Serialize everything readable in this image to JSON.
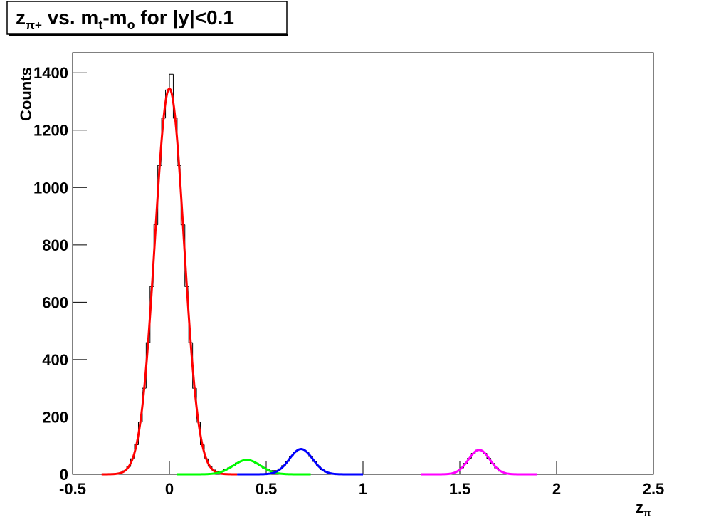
{
  "chart_data": {
    "type": "histogram",
    "title_parts": [
      "z",
      "π+",
      " vs. m",
      "t",
      "-m",
      "o",
      " for |y|<0.1"
    ],
    "xlabel_parts": [
      "z",
      "π"
    ],
    "ylabel": "Counts",
    "xlim": [
      -0.5,
      2.5
    ],
    "ylim": [
      0,
      1470
    ],
    "xticks": [
      -0.5,
      0,
      0.5,
      1,
      1.5,
      2,
      2.5
    ],
    "yticks": [
      0,
      200,
      400,
      600,
      800,
      1000,
      1200,
      1400
    ],
    "color": "#000000",
    "bins": [
      -0.3,
      -0.28,
      -0.26,
      -0.24,
      -0.22,
      -0.2,
      -0.18,
      -0.16,
      -0.14,
      -0.12,
      -0.1,
      -0.08,
      -0.06,
      -0.04,
      -0.02,
      0,
      0.02,
      0.04,
      0.06,
      0.08,
      0.1,
      0.12,
      0.14,
      0.16,
      0.18,
      0.2,
      0.22,
      0.24,
      0.26,
      0.28,
      0.3,
      0.32,
      0.34,
      0.36,
      0.38,
      0.4,
      0.42,
      0.44,
      0.46,
      0.48,
      0.5,
      0.52,
      0.54,
      0.56,
      0.58,
      0.6,
      0.62,
      0.64,
      0.66,
      0.68,
      0.7,
      0.72,
      0.74,
      0.76,
      0.78,
      0.8,
      0.82,
      0.84,
      0.86,
      0.88,
      0.9,
      0.92,
      0.94,
      0.96,
      0.98,
      1,
      1.02,
      1.04,
      1.06,
      1.08,
      1.1,
      1.12,
      1.14,
      1.16,
      1.18,
      1.2,
      1.22,
      1.24,
      1.26,
      1.28,
      1.3,
      1.32,
      1.34,
      1.36,
      1.38,
      1.4,
      1.42,
      1.44,
      1.46,
      1.48,
      1.5,
      1.52,
      1.54,
      1.56,
      1.58,
      1.6,
      1.62,
      1.64,
      1.66,
      1.68,
      1.7,
      1.72,
      1.74,
      1.76,
      1.78,
      1.8,
      1.82,
      1.84,
      1.86,
      1.88,
      1.9
    ],
    "values": [
      1,
      2,
      5,
      12,
      27,
      54,
      103,
      182,
      300,
      459,
      655,
      870,
      1077,
      1242,
      1340,
      1395,
      1242,
      1077,
      870,
      655,
      459,
      300,
      182,
      103,
      54,
      28,
      15,
      10,
      11,
      16,
      22,
      30,
      39,
      46,
      50,
      50,
      46,
      39,
      30,
      22,
      17,
      13,
      13,
      19,
      30,
      45,
      62,
      78,
      87,
      87,
      78,
      62,
      45,
      29,
      16,
      8,
      4,
      2,
      1,
      0,
      0,
      1,
      0,
      0,
      0,
      0,
      0,
      0,
      1,
      0,
      0,
      0,
      0,
      0,
      0,
      0,
      0,
      1,
      0,
      0,
      0,
      0,
      0,
      0,
      0,
      0,
      0,
      2,
      5,
      11,
      22,
      38,
      56,
      73,
      84,
      84,
      73,
      56,
      38,
      22,
      11,
      5,
      2,
      0,
      0,
      0,
      0,
      0,
      0,
      0
    ],
    "fits": [
      {
        "color": "#ff0000",
        "constant": 1345,
        "mean": 0,
        "sigma": 0.075,
        "range": [
          -0.35,
          0.35
        ]
      },
      {
        "color": "#00ff00",
        "constant": 50,
        "mean": 0.4,
        "sigma": 0.07,
        "range": [
          0.04,
          0.73
        ]
      },
      {
        "color": "#0000ff",
        "constant": 88,
        "mean": 0.68,
        "sigma": 0.06,
        "range": [
          0.35,
          1.0
        ]
      },
      {
        "color": "#ff00ff",
        "constant": 85,
        "mean": 1.6,
        "sigma": 0.055,
        "range": [
          1.3,
          1.9
        ]
      }
    ]
  }
}
